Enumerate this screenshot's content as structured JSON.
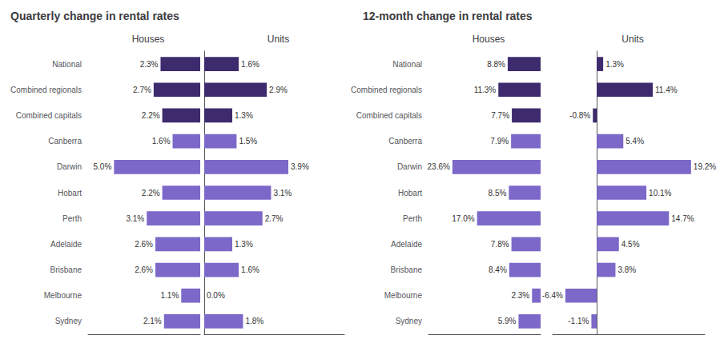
{
  "chart_data": [
    {
      "type": "bar",
      "orientation": "horizontal",
      "title": "Quarterly change in rental rates",
      "subtitle": "Houses",
      "categories": [
        "Sydney",
        "Melbourne",
        "Brisbane",
        "Adelaide",
        "Perth",
        "Hobart",
        "Darwin",
        "Canberra",
        "Combined capitals",
        "Combined regionals",
        "National"
      ],
      "values": [
        2.1,
        1.1,
        2.6,
        2.6,
        3.1,
        2.2,
        5.0,
        1.6,
        2.2,
        2.7,
        2.3
      ],
      "value_labels": [
        "2.1%",
        "1.1%",
        "2.6%",
        "2.6%",
        "3.1%",
        "2.2%",
        "5.0%",
        "1.6%",
        "2.2%",
        "2.7%",
        "2.3%"
      ],
      "colors": [
        "#7b68c8",
        "#7b68c8",
        "#7b68c8",
        "#7b68c8",
        "#7b68c8",
        "#7b68c8",
        "#7b68c8",
        "#7b68c8",
        "#3d2b6e",
        "#3d2b6e",
        "#3d2b6e"
      ],
      "xlim": [
        6.5,
        0
      ],
      "data_labels": true,
      "tick_labels": "y",
      "grid": false
    },
    {
      "type": "bar",
      "orientation": "horizontal",
      "subtitle": "Units",
      "categories": [
        "Sydney",
        "Melbourne",
        "Brisbane",
        "Adelaide",
        "Perth",
        "Hobart",
        "Darwin",
        "Canberra",
        "Combined capitals",
        "Combined regionals",
        "National"
      ],
      "values": [
        1.8,
        0.0,
        1.6,
        1.3,
        2.7,
        3.1,
        3.9,
        1.5,
        1.3,
        2.9,
        1.6
      ],
      "value_labels": [
        "1.8%",
        "0.0%",
        "1.6%",
        "1.3%",
        "2.7%",
        "3.1%",
        "3.9%",
        "1.5%",
        "1.3%",
        "2.9%",
        "1.6%"
      ],
      "colors": [
        "#7b68c8",
        "#7b68c8",
        "#7b68c8",
        "#7b68c8",
        "#7b68c8",
        "#7b68c8",
        "#7b68c8",
        "#7b68c8",
        "#3d2b6e",
        "#3d2b6e",
        "#3d2b6e"
      ],
      "xlim": [
        0,
        6.5
      ],
      "data_labels": true,
      "tick_labels": false,
      "grid": false
    },
    {
      "type": "bar",
      "orientation": "horizontal",
      "title": "12-month change in rental rates",
      "subtitle": "Houses",
      "categories": [
        "Sydney",
        "Melbourne",
        "Brisbane",
        "Adelaide",
        "Perth",
        "Hobart",
        "Darwin",
        "Canberra",
        "Combined capitals",
        "Combined regionals",
        "National"
      ],
      "values": [
        5.9,
        2.3,
        8.4,
        7.8,
        17.0,
        8.5,
        23.6,
        7.9,
        7.7,
        11.3,
        8.8
      ],
      "value_labels": [
        "5.9%",
        "2.3%",
        "8.4%",
        "7.8%",
        "17.0%",
        "8.5%",
        "23.6%",
        "7.9%",
        "7.7%",
        "11.3%",
        "8.8%"
      ],
      "colors": [
        "#7b68c8",
        "#7b68c8",
        "#7b68c8",
        "#7b68c8",
        "#7b68c8",
        "#7b68c8",
        "#7b68c8",
        "#7b68c8",
        "#3d2b6e",
        "#3d2b6e",
        "#3d2b6e"
      ],
      "xlim": [
        30,
        0
      ],
      "data_labels": true,
      "tick_labels": "y",
      "grid": false
    },
    {
      "type": "bar",
      "orientation": "horizontal",
      "subtitle": "Units",
      "categories": [
        "Sydney",
        "Melbourne",
        "Brisbane",
        "Adelaide",
        "Perth",
        "Hobart",
        "Darwin",
        "Canberra",
        "Combined capitals",
        "Combined regionals",
        "National"
      ],
      "values": [
        -1.1,
        -6.4,
        3.8,
        4.5,
        14.7,
        10.1,
        19.2,
        5.4,
        -0.8,
        11.4,
        1.3
      ],
      "value_labels": [
        "-1.1%",
        "-6.4%",
        "3.8%",
        "4.5%",
        "14.7%",
        "10.1%",
        "19.2%",
        "5.4%",
        "-0.8%",
        "11.4%",
        "1.3%"
      ],
      "colors": [
        "#7b68c8",
        "#7b68c8",
        "#7b68c8",
        "#7b68c8",
        "#7b68c8",
        "#7b68c8",
        "#7b68c8",
        "#7b68c8",
        "#3d2b6e",
        "#3d2b6e",
        "#3d2b6e"
      ],
      "xlim": [
        -9,
        22
      ],
      "data_labels": true,
      "tick_labels": false,
      "grid": false
    }
  ]
}
